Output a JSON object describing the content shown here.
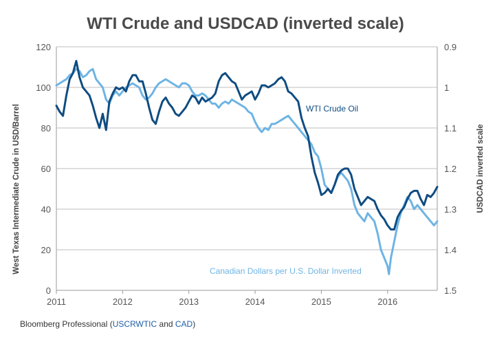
{
  "chart_data": {
    "type": "line",
    "title": "WTI Crude and USDCAD (inverted scale)",
    "ylabel_left": "West Texas Intermediate Crude in USD/Barrel",
    "ylabel_right": "USDCAD inverted scale",
    "x_ticks": [
      "2011",
      "2012",
      "2013",
      "2014",
      "2015",
      "2016"
    ],
    "y_left_ticks": [
      "0",
      "20",
      "40",
      "60",
      "80",
      "100",
      "120"
    ],
    "y_right_ticks": [
      "1.5",
      "1.4",
      "1.3",
      "1.2",
      "1.1",
      "1",
      "0.9"
    ],
    "xlim": [
      2011.0,
      2016.75
    ],
    "ylim_left": [
      0,
      120
    ],
    "ylim_right": [
      1.5,
      0.9
    ],
    "y_right_inverted": true,
    "grid": "horizontal",
    "series": [
      {
        "name": "WTI Crude Oil",
        "axis": "left",
        "color": "#0f4c81",
        "label": "WTI Crude Oil",
        "points": [
          [
            2011.0,
            91
          ],
          [
            2011.05,
            88
          ],
          [
            2011.1,
            86
          ],
          [
            2011.15,
            96
          ],
          [
            2011.2,
            104
          ],
          [
            2011.25,
            107
          ],
          [
            2011.3,
            113
          ],
          [
            2011.35,
            105
          ],
          [
            2011.4,
            100
          ],
          [
            2011.45,
            98
          ],
          [
            2011.5,
            96
          ],
          [
            2011.55,
            91
          ],
          [
            2011.6,
            85
          ],
          [
            2011.65,
            80
          ],
          [
            2011.7,
            87
          ],
          [
            2011.75,
            79
          ],
          [
            2011.8,
            93
          ],
          [
            2011.85,
            97
          ],
          [
            2011.9,
            100
          ],
          [
            2011.95,
            99
          ],
          [
            2012.0,
            100
          ],
          [
            2012.05,
            98
          ],
          [
            2012.1,
            103
          ],
          [
            2012.15,
            106
          ],
          [
            2012.2,
            106
          ],
          [
            2012.25,
            103
          ],
          [
            2012.3,
            103
          ],
          [
            2012.35,
            97
          ],
          [
            2012.4,
            90
          ],
          [
            2012.45,
            84
          ],
          [
            2012.5,
            82
          ],
          [
            2012.55,
            88
          ],
          [
            2012.6,
            93
          ],
          [
            2012.65,
            95
          ],
          [
            2012.7,
            92
          ],
          [
            2012.75,
            90
          ],
          [
            2012.8,
            87
          ],
          [
            2012.85,
            86
          ],
          [
            2012.9,
            88
          ],
          [
            2012.95,
            90
          ],
          [
            2013.0,
            93
          ],
          [
            2013.05,
            96
          ],
          [
            2013.1,
            95
          ],
          [
            2013.15,
            92
          ],
          [
            2013.2,
            95
          ],
          [
            2013.25,
            93
          ],
          [
            2013.3,
            94
          ],
          [
            2013.35,
            95
          ],
          [
            2013.4,
            97
          ],
          [
            2013.45,
            103
          ],
          [
            2013.5,
            106
          ],
          [
            2013.55,
            107
          ],
          [
            2013.6,
            105
          ],
          [
            2013.65,
            103
          ],
          [
            2013.7,
            102
          ],
          [
            2013.75,
            98
          ],
          [
            2013.8,
            94
          ],
          [
            2013.85,
            96
          ],
          [
            2013.9,
            97
          ],
          [
            2013.95,
            98
          ],
          [
            2014.0,
            94
          ],
          [
            2014.05,
            97
          ],
          [
            2014.1,
            101
          ],
          [
            2014.15,
            101
          ],
          [
            2014.2,
            100
          ],
          [
            2014.25,
            101
          ],
          [
            2014.3,
            102
          ],
          [
            2014.35,
            104
          ],
          [
            2014.4,
            105
          ],
          [
            2014.45,
            103
          ],
          [
            2014.5,
            98
          ],
          [
            2014.55,
            97
          ],
          [
            2014.6,
            95
          ],
          [
            2014.65,
            93
          ],
          [
            2014.7,
            85
          ],
          [
            2014.75,
            80
          ],
          [
            2014.8,
            76
          ],
          [
            2014.85,
            66
          ],
          [
            2014.9,
            58
          ],
          [
            2014.95,
            53
          ],
          [
            2015.0,
            47
          ],
          [
            2015.05,
            48
          ],
          [
            2015.1,
            50
          ],
          [
            2015.15,
            48
          ],
          [
            2015.2,
            52
          ],
          [
            2015.25,
            57
          ],
          [
            2015.3,
            59
          ],
          [
            2015.35,
            60
          ],
          [
            2015.4,
            60
          ],
          [
            2015.45,
            57
          ],
          [
            2015.5,
            50
          ],
          [
            2015.55,
            46
          ],
          [
            2015.6,
            42
          ],
          [
            2015.65,
            44
          ],
          [
            2015.7,
            46
          ],
          [
            2015.75,
            45
          ],
          [
            2015.8,
            44
          ],
          [
            2015.85,
            40
          ],
          [
            2015.9,
            37
          ],
          [
            2015.95,
            35
          ],
          [
            2016.0,
            32
          ],
          [
            2016.05,
            30
          ],
          [
            2016.1,
            30
          ],
          [
            2016.15,
            36
          ],
          [
            2016.2,
            39
          ],
          [
            2016.25,
            41
          ],
          [
            2016.3,
            45
          ],
          [
            2016.35,
            48
          ],
          [
            2016.4,
            49
          ],
          [
            2016.45,
            49
          ],
          [
            2016.5,
            45
          ],
          [
            2016.55,
            42
          ],
          [
            2016.6,
            47
          ],
          [
            2016.65,
            46
          ],
          [
            2016.7,
            48
          ],
          [
            2016.75,
            51
          ]
        ]
      },
      {
        "name": "Canadian Dollars per U.S. Dollar Inverted",
        "axis": "right",
        "color": "#6eb4e4",
        "label": "Canadian Dollars per U.S. Dollar Inverted",
        "points": [
          [
            2011.0,
            0.995
          ],
          [
            2011.05,
            0.99
          ],
          [
            2011.1,
            0.985
          ],
          [
            2011.15,
            0.98
          ],
          [
            2011.2,
            0.97
          ],
          [
            2011.25,
            0.965
          ],
          [
            2011.3,
            0.955
          ],
          [
            2011.35,
            0.96
          ],
          [
            2011.4,
            0.975
          ],
          [
            2011.45,
            0.97
          ],
          [
            2011.5,
            0.96
          ],
          [
            2011.55,
            0.955
          ],
          [
            2011.6,
            0.98
          ],
          [
            2011.65,
            0.99
          ],
          [
            2011.7,
            1.0
          ],
          [
            2011.75,
            1.03
          ],
          [
            2011.8,
            1.04
          ],
          [
            2011.85,
            1.02
          ],
          [
            2011.9,
            1.01
          ],
          [
            2011.95,
            1.02
          ],
          [
            2012.0,
            1.01
          ],
          [
            2012.05,
            1.0
          ],
          [
            2012.1,
            0.995
          ],
          [
            2012.15,
            0.99
          ],
          [
            2012.2,
            0.995
          ],
          [
            2012.25,
            1.0
          ],
          [
            2012.3,
            1.02
          ],
          [
            2012.35,
            1.03
          ],
          [
            2012.4,
            1.025
          ],
          [
            2012.45,
            1.015
          ],
          [
            2012.5,
            1.0
          ],
          [
            2012.55,
            0.99
          ],
          [
            2012.6,
            0.985
          ],
          [
            2012.65,
            0.98
          ],
          [
            2012.7,
            0.985
          ],
          [
            2012.75,
            0.99
          ],
          [
            2012.8,
            0.995
          ],
          [
            2012.85,
            1.0
          ],
          [
            2012.9,
            0.99
          ],
          [
            2012.95,
            0.99
          ],
          [
            2013.0,
            0.995
          ],
          [
            2013.05,
            1.01
          ],
          [
            2013.1,
            1.02
          ],
          [
            2013.15,
            1.02
          ],
          [
            2013.2,
            1.015
          ],
          [
            2013.25,
            1.02
          ],
          [
            2013.3,
            1.03
          ],
          [
            2013.35,
            1.04
          ],
          [
            2013.4,
            1.04
          ],
          [
            2013.45,
            1.05
          ],
          [
            2013.5,
            1.04
          ],
          [
            2013.55,
            1.035
          ],
          [
            2013.6,
            1.04
          ],
          [
            2013.65,
            1.03
          ],
          [
            2013.7,
            1.035
          ],
          [
            2013.75,
            1.04
          ],
          [
            2013.8,
            1.045
          ],
          [
            2013.85,
            1.05
          ],
          [
            2013.9,
            1.06
          ],
          [
            2013.95,
            1.065
          ],
          [
            2014.0,
            1.085
          ],
          [
            2014.05,
            1.1
          ],
          [
            2014.1,
            1.11
          ],
          [
            2014.15,
            1.1
          ],
          [
            2014.2,
            1.105
          ],
          [
            2014.25,
            1.09
          ],
          [
            2014.3,
            1.09
          ],
          [
            2014.35,
            1.085
          ],
          [
            2014.4,
            1.08
          ],
          [
            2014.45,
            1.075
          ],
          [
            2014.5,
            1.07
          ],
          [
            2014.55,
            1.08
          ],
          [
            2014.6,
            1.09
          ],
          [
            2014.65,
            1.1
          ],
          [
            2014.7,
            1.11
          ],
          [
            2014.75,
            1.12
          ],
          [
            2014.8,
            1.13
          ],
          [
            2014.85,
            1.14
          ],
          [
            2014.9,
            1.16
          ],
          [
            2014.95,
            1.17
          ],
          [
            2015.0,
            1.2
          ],
          [
            2015.05,
            1.24
          ],
          [
            2015.1,
            1.25
          ],
          [
            2015.15,
            1.26
          ],
          [
            2015.2,
            1.24
          ],
          [
            2015.25,
            1.22
          ],
          [
            2015.3,
            1.21
          ],
          [
            2015.35,
            1.22
          ],
          [
            2015.4,
            1.23
          ],
          [
            2015.45,
            1.25
          ],
          [
            2015.5,
            1.29
          ],
          [
            2015.55,
            1.31
          ],
          [
            2015.6,
            1.32
          ],
          [
            2015.65,
            1.33
          ],
          [
            2015.7,
            1.31
          ],
          [
            2015.75,
            1.32
          ],
          [
            2015.8,
            1.33
          ],
          [
            2015.85,
            1.36
          ],
          [
            2015.9,
            1.4
          ],
          [
            2015.95,
            1.42
          ],
          [
            2016.0,
            1.44
          ],
          [
            2016.02,
            1.46
          ],
          [
            2016.05,
            1.42
          ],
          [
            2016.1,
            1.38
          ],
          [
            2016.15,
            1.34
          ],
          [
            2016.2,
            1.31
          ],
          [
            2016.25,
            1.29
          ],
          [
            2016.3,
            1.27
          ],
          [
            2016.35,
            1.28
          ],
          [
            2016.4,
            1.3
          ],
          [
            2016.45,
            1.29
          ],
          [
            2016.5,
            1.3
          ],
          [
            2016.55,
            1.31
          ],
          [
            2016.6,
            1.32
          ],
          [
            2016.65,
            1.33
          ],
          [
            2016.7,
            1.34
          ],
          [
            2016.75,
            1.33
          ]
        ]
      }
    ]
  },
  "source": {
    "prefix": "Bloomberg Professional (",
    "ticker1": "USCRWTIC",
    "middle": " and ",
    "ticker2": "CAD",
    "suffix": ")"
  }
}
